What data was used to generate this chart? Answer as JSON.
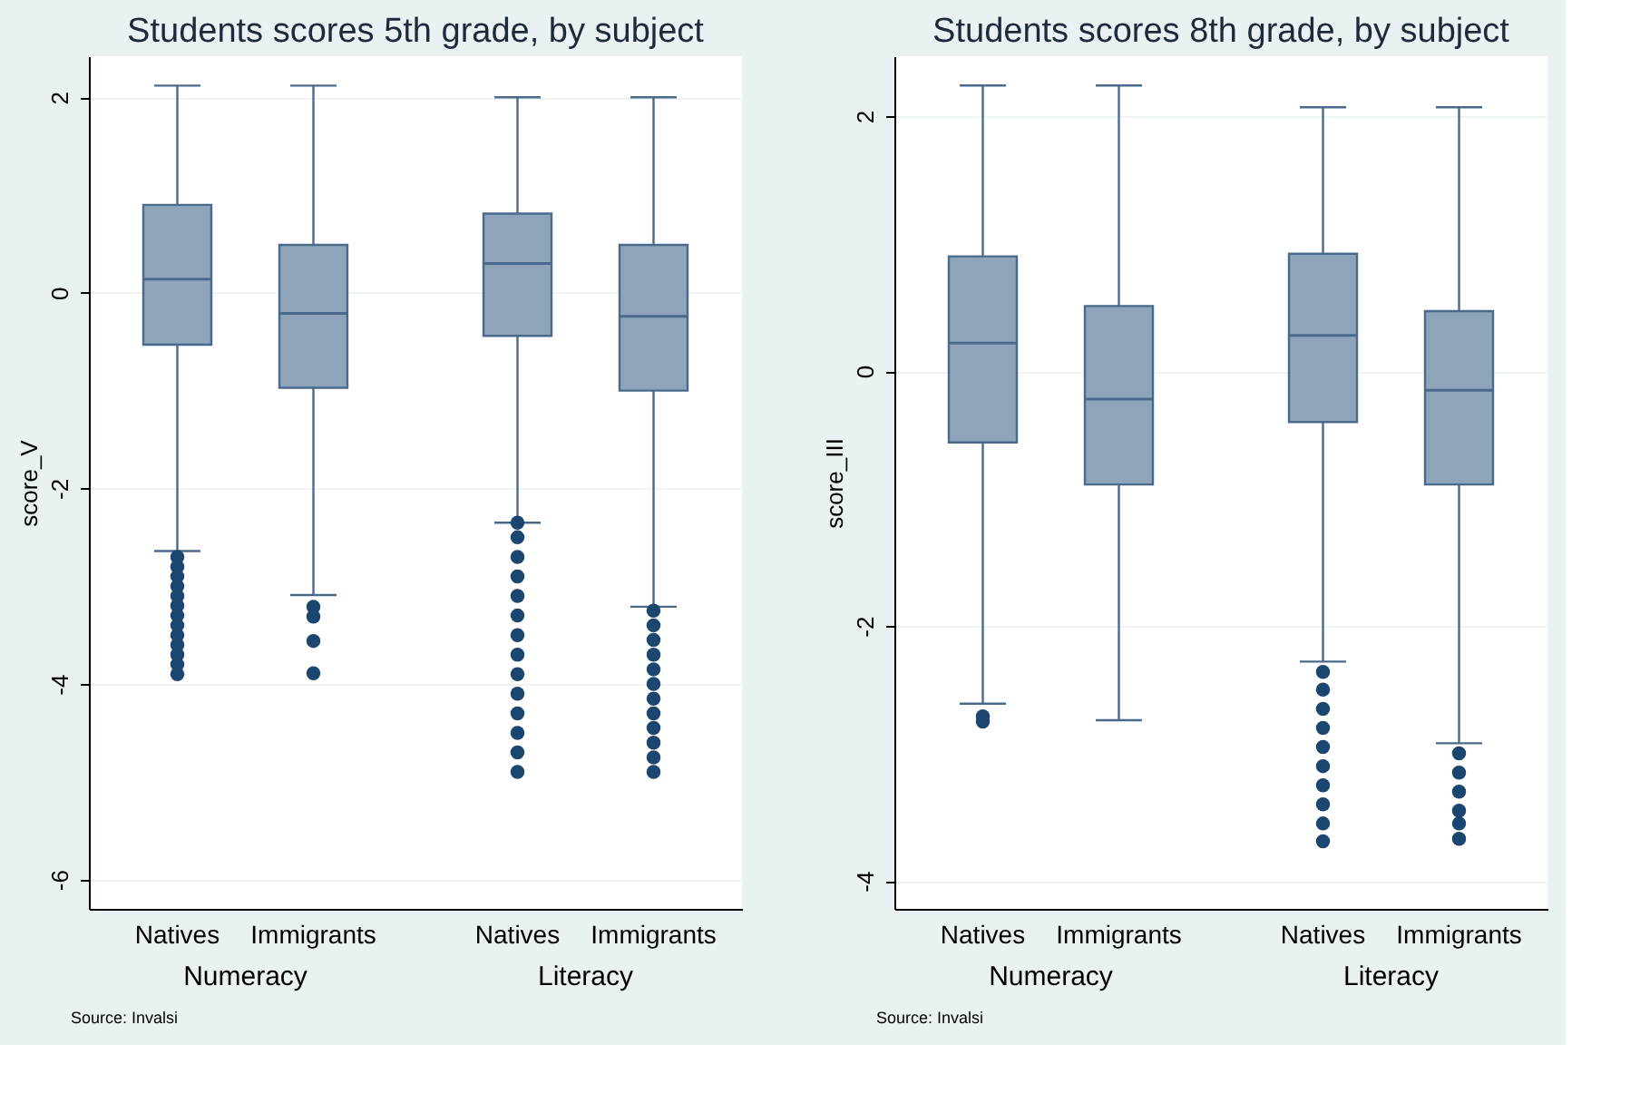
{
  "chart_data": [
    {
      "type": "box",
      "title": "Students scores 5th grade, by subject",
      "ylabel": "score_V",
      "categories": [
        "Natives",
        "Immigrants",
        "Natives",
        "Immigrants"
      ],
      "annotations": [
        "Numeracy",
        "Literacy",
        "Source: Invalsi"
      ],
      "ylim": [
        -6.3,
        2.42
      ],
      "yticks": [
        2,
        0,
        -2,
        -4,
        -6
      ],
      "grid": "y",
      "series": [
        {
          "color": "#8ea4ba",
          "boxes": [
            {
              "low": -2.64,
              "q1": -0.53,
              "median": 0.14,
              "q3": 0.9,
              "high": 2.12,
              "outliers": [
                -2.7,
                -2.8,
                -2.9,
                -3.0,
                -3.1,
                -3.2,
                -3.3,
                -3.4,
                -3.5,
                -3.6,
                -3.7,
                -3.8,
                -3.9
              ]
            },
            {
              "low": -3.09,
              "q1": -0.97,
              "median": -0.21,
              "q3": 0.49,
              "high": 2.12,
              "outliers": [
                -3.21,
                -3.31,
                -3.56,
                -3.89
              ]
            },
            {
              "low": -2.35,
              "q1": -0.44,
              "median": 0.3,
              "q3": 0.81,
              "high": 2.0,
              "outliers": [
                -2.35,
                -2.5,
                -2.7,
                -2.9,
                -3.1,
                -3.3,
                -3.5,
                -3.7,
                -3.9,
                -4.1,
                -4.3,
                -4.5,
                -4.7,
                -4.9
              ]
            },
            {
              "low": -3.21,
              "q1": -1.0,
              "median": -0.24,
              "q3": 0.49,
              "high": 2.0,
              "outliers": [
                -3.25,
                -3.4,
                -3.55,
                -3.7,
                -3.85,
                -4.0,
                -4.15,
                -4.3,
                -4.45,
                -4.6,
                -4.75,
                -4.9
              ]
            }
          ]
        }
      ]
    },
    {
      "type": "box",
      "title": "Students scores 8th grade, by subject",
      "ylabel": "score_III",
      "categories": [
        "Natives",
        "Immigrants",
        "Natives",
        "Immigrants"
      ],
      "annotations": [
        "Numeracy",
        "Literacy",
        "Source: Invalsi"
      ],
      "ylim": [
        -4.22,
        2.47
      ],
      "yticks": [
        2,
        0,
        -2,
        -4
      ],
      "grid": "y",
      "series": [
        {
          "color": "#8ea4ba",
          "boxes": [
            {
              "low": -2.61,
              "q1": -0.56,
              "median": 0.22,
              "q3": 0.9,
              "high": 2.24,
              "outliers": [
                -2.71,
                -2.75
              ]
            },
            {
              "low": -2.74,
              "q1": -0.89,
              "median": -0.22,
              "q3": 0.51,
              "high": 2.24
            },
            {
              "low": -2.28,
              "q1": -0.4,
              "median": 0.28,
              "q3": 0.92,
              "high": 2.07,
              "outliers": [
                -2.36,
                -2.5,
                -2.65,
                -2.8,
                -2.95,
                -3.1,
                -3.25,
                -3.4,
                -3.55,
                -3.69
              ]
            },
            {
              "low": -2.92,
              "q1": -0.89,
              "median": -0.15,
              "q3": 0.47,
              "high": 2.07,
              "outliers": [
                -3.0,
                -3.15,
                -3.3,
                -3.45,
                -3.55,
                -3.67
              ]
            }
          ]
        }
      ]
    }
  ]
}
